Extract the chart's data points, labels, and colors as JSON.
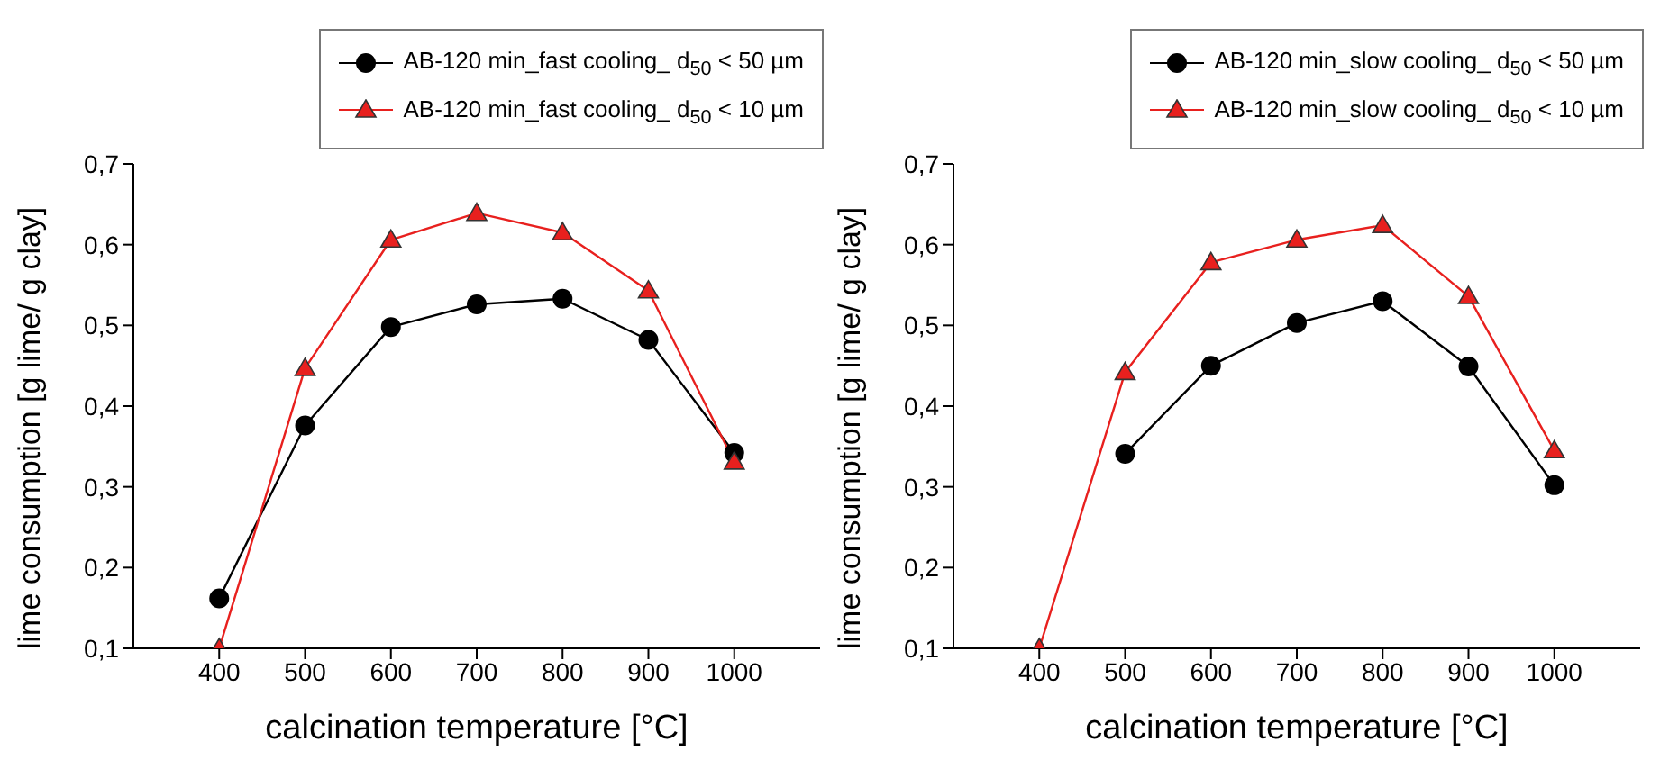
{
  "chart_data": [
    {
      "type": "line",
      "xlabel": "calcination temperature [°C]",
      "ylabel": "lime consumption [g lime/ g clay]",
      "x": [
        400,
        500,
        600,
        700,
        800,
        900,
        1000
      ],
      "xlim": [
        300,
        1100
      ],
      "xticks": [
        400,
        500,
        600,
        700,
        800,
        900,
        1000
      ],
      "ylim": [
        0.1,
        0.7
      ],
      "yticks": [
        {
          "value": 0.1,
          "label": "0,1"
        },
        {
          "value": 0.2,
          "label": "0,2"
        },
        {
          "value": 0.3,
          "label": "0,3"
        },
        {
          "value": 0.4,
          "label": "0,4"
        },
        {
          "value": 0.5,
          "label": "0,5"
        },
        {
          "value": 0.6,
          "label": "0,6"
        },
        {
          "value": 0.7,
          "label": "0,7"
        }
      ],
      "grid": false,
      "legend": "top",
      "line_style": "solid",
      "series": [
        {
          "name": "AB-120 min_fast cooling_ d$_{50}$ < 50 µm",
          "color": "#000000",
          "marker": "circle",
          "values": [
            0.162,
            0.376,
            0.498,
            0.526,
            0.533,
            0.482,
            0.342
          ]
        },
        {
          "name": "AB-120 min_fast cooling_ d$_{50}$ < 10 µm",
          "color": "#e8201e",
          "marker": "triangle",
          "values": [
            0.1,
            0.447,
            0.606,
            0.639,
            0.615,
            0.543,
            0.331
          ]
        }
      ]
    },
    {
      "type": "line",
      "xlabel": "calcination temperature [°C]",
      "ylabel": "lime consumption [g lime/ g clay]",
      "x": [
        400,
        500,
        600,
        700,
        800,
        900,
        1000
      ],
      "xlim": [
        300,
        1100
      ],
      "xticks": [
        400,
        500,
        600,
        700,
        800,
        900,
        1000
      ],
      "ylim": [
        0.1,
        0.7
      ],
      "yticks": [
        {
          "value": 0.1,
          "label": "0,1"
        },
        {
          "value": 0.2,
          "label": "0,2"
        },
        {
          "value": 0.3,
          "label": "0,3"
        },
        {
          "value": 0.4,
          "label": "0,4"
        },
        {
          "value": 0.5,
          "label": "0,5"
        },
        {
          "value": 0.6,
          "label": "0,6"
        },
        {
          "value": 0.7,
          "label": "0,7"
        }
      ],
      "grid": false,
      "legend": "top",
      "line_style": "solid",
      "series": [
        {
          "name": "AB-120 min_slow cooling_ d$_{50}$ < 50 µm",
          "color": "#000000",
          "marker": "circle",
          "values": [
            null,
            0.341,
            0.45,
            0.503,
            0.53,
            0.449,
            0.302
          ]
        },
        {
          "name": "AB-120 min_slow cooling_ d$_{50}$ < 10 µm",
          "color": "#e8201e",
          "marker": "triangle",
          "values": [
            0.1,
            0.442,
            0.578,
            0.606,
            0.624,
            0.536,
            0.345
          ]
        }
      ]
    }
  ]
}
